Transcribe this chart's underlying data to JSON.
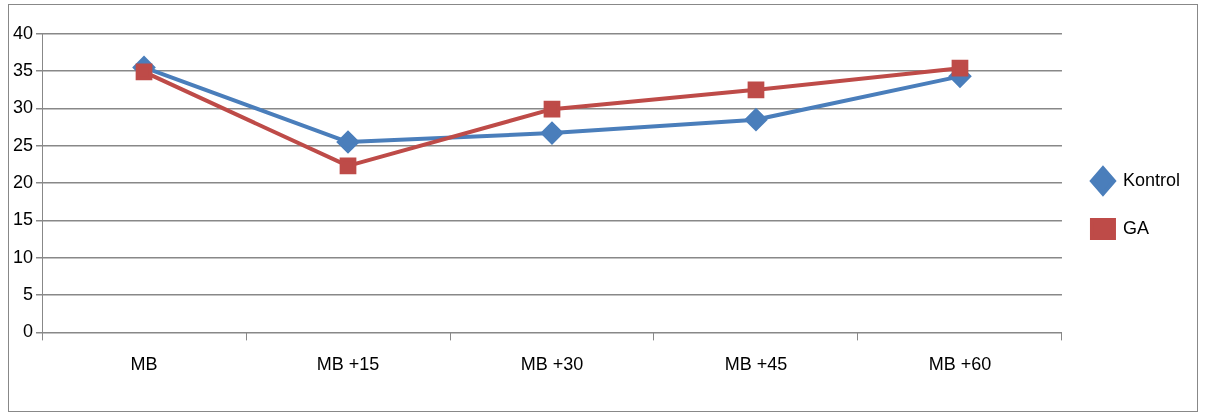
{
  "chart_data": {
    "type": "line",
    "categories": [
      "MB",
      "MB +15",
      "MB +30",
      "MB +45",
      "MB +60"
    ],
    "series": [
      {
        "name": "Kontrol",
        "color": "#4a7ebb",
        "values": [
          35.5,
          25.5,
          26.7,
          28.5,
          34.3
        ],
        "marker": "diamond"
      },
      {
        "name": "GA",
        "color": "#be4b48",
        "values": [
          34.9,
          22.3,
          29.9,
          32.5,
          35.4
        ],
        "marker": "square"
      }
    ],
    "ylim": [
      0,
      40
    ],
    "yticks": [
      0,
      5,
      10,
      15,
      20,
      25,
      30,
      35,
      40
    ],
    "grid": "y",
    "legend": "right"
  }
}
